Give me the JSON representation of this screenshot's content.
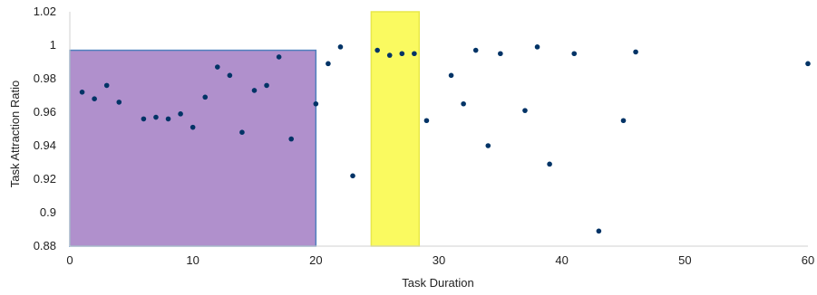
{
  "chart_data": {
    "type": "scatter",
    "title": "",
    "xlabel": "Task Duration",
    "ylabel": "Task Attraction Ratio",
    "xlim": [
      0,
      60
    ],
    "ylim": [
      0.88,
      1.02
    ],
    "x_ticks": [
      0,
      10,
      20,
      30,
      40,
      50,
      60
    ],
    "x_tick_labels": [
      "0",
      "10",
      "20",
      "30",
      "40",
      "50",
      "60"
    ],
    "y_ticks": [
      0.88,
      0.9,
      0.92,
      0.94,
      0.96,
      0.98,
      1,
      1.02
    ],
    "y_tick_labels": [
      "0.88",
      "0.9",
      "0.92",
      "0.94",
      "0.96",
      "0.98",
      "1",
      "1.02"
    ],
    "grid": false,
    "legend": "none",
    "point_color": "#003366",
    "highlight_regions": [
      {
        "x": [
          0,
          20
        ],
        "y": [
          0.88,
          0.997
        ],
        "fill": "#b090cc",
        "stroke": "#4f81bd"
      },
      {
        "x": [
          24.5,
          28.4
        ],
        "y": [
          0.88,
          1.02
        ],
        "fill": "#fafa60",
        "stroke": "#e8e84a"
      }
    ],
    "series": [
      {
        "points": [
          [
            1,
            0.972
          ],
          [
            2,
            0.968
          ],
          [
            3,
            0.976
          ],
          [
            4,
            0.966
          ],
          [
            6,
            0.956
          ],
          [
            7,
            0.957
          ],
          [
            8,
            0.956
          ],
          [
            9,
            0.959
          ],
          [
            10,
            0.951
          ],
          [
            11,
            0.969
          ],
          [
            12,
            0.987
          ],
          [
            13,
            0.982
          ],
          [
            14,
            0.948
          ],
          [
            15,
            0.973
          ],
          [
            16,
            0.976
          ],
          [
            17,
            0.993
          ],
          [
            18,
            0.944
          ],
          [
            20,
            0.965
          ],
          [
            21,
            0.989
          ],
          [
            22,
            0.999
          ],
          [
            23,
            0.922
          ],
          [
            25,
            0.997
          ],
          [
            26,
            0.994
          ],
          [
            27,
            0.995
          ],
          [
            28,
            0.995
          ],
          [
            29,
            0.955
          ],
          [
            31,
            0.982
          ],
          [
            32,
            0.965
          ],
          [
            33,
            0.997
          ],
          [
            34,
            0.94
          ],
          [
            35,
            0.995
          ],
          [
            37,
            0.961
          ],
          [
            38,
            0.999
          ],
          [
            39,
            0.929
          ],
          [
            41,
            0.995
          ],
          [
            43,
            0.889
          ],
          [
            45,
            0.955
          ],
          [
            46,
            0.996
          ],
          [
            60,
            0.989
          ]
        ]
      }
    ]
  }
}
